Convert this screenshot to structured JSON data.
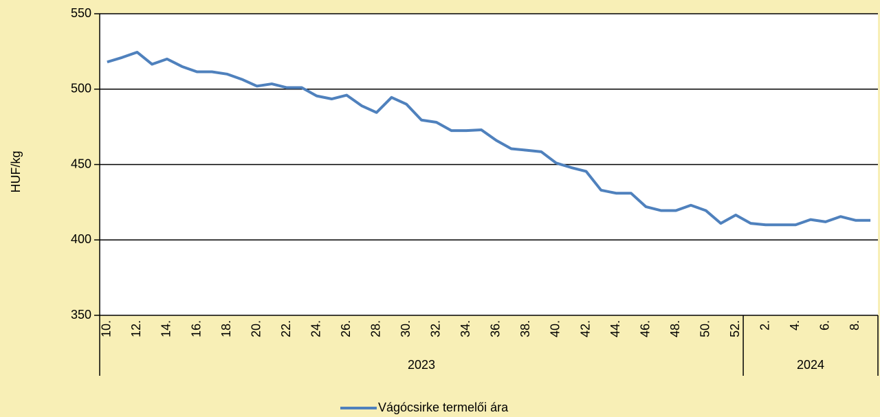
{
  "chart_data": {
    "type": "line",
    "y_label": "HUF/kg",
    "categories": [
      "10.",
      null,
      "12.",
      null,
      "14.",
      null,
      "16.",
      null,
      "18.",
      null,
      "20.",
      null,
      "22.",
      null,
      "24.",
      null,
      "26.",
      null,
      "28.",
      null,
      "30.",
      null,
      "32.",
      null,
      "34.",
      null,
      "36.",
      null,
      "38.",
      null,
      "40.",
      null,
      "42.",
      null,
      "44.",
      null,
      "46.",
      null,
      "48.",
      null,
      "50.",
      null,
      "52.",
      null,
      "2.",
      null,
      "4.",
      null,
      "6.",
      null,
      "8.",
      null
    ],
    "groups": [
      {
        "label": "2023",
        "count": 43
      },
      {
        "label": "2024",
        "count": 9
      }
    ],
    "series": [
      {
        "name": "Vágócsirke termelői ára",
        "color": "#4f81bd",
        "values": [
          518,
          521,
          524.5,
          516.5,
          520,
          515,
          511.5,
          511.5,
          510,
          506.5,
          502,
          503.5,
          501,
          501,
          495.5,
          493.5,
          496,
          489,
          484.5,
          494.5,
          490,
          479.5,
          478,
          472.5,
          472.5,
          473,
          466,
          460.5,
          459.5,
          458.5,
          451,
          448,
          445.5,
          433,
          431,
          431,
          422,
          419.5,
          419.5,
          423,
          419.5,
          411,
          416.5,
          411,
          410,
          410,
          410,
          413.5,
          412,
          415.5,
          413,
          413
        ]
      }
    ],
    "ylim": [
      350,
      550
    ],
    "yticks": [
      350,
      400,
      450,
      500,
      550
    ],
    "grid": true,
    "legend": "bottom"
  }
}
